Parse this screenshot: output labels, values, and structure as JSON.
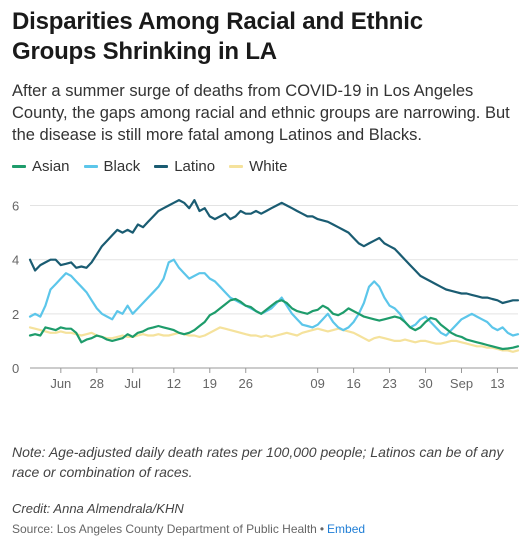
{
  "header": {
    "title": "Disparities Among Racial and Ethnic Groups Shrinking in LA",
    "subtitle": "After a summer surge of deaths from COVID-19 in Los Angeles County, the gaps among racial and ethnic groups are narrowing. But the disease is still more fatal among Latinos and Blacks."
  },
  "footer": {
    "note": "Note: Age-adjusted daily death rates per 100,000 people; Latinos can be of any race or combination of races.",
    "credit": "Credit: Anna Almendrala/KHN",
    "source": "Source: Los Angeles County Department of Public Health",
    "separator": "•",
    "embed": "Embed"
  },
  "chart_data": {
    "type": "line",
    "title": "",
    "xlabel": "",
    "ylabel": "",
    "ylim": [
      0,
      6.5
    ],
    "yticks": [
      0,
      2,
      4,
      6
    ],
    "xlim": [
      0,
      95
    ],
    "xticks": [
      {
        "x": 6,
        "label": "Jun"
      },
      {
        "x": 13,
        "label": "28"
      },
      {
        "x": 20,
        "label": "Jul"
      },
      {
        "x": 28,
        "label": "12"
      },
      {
        "x": 35,
        "label": "19"
      },
      {
        "x": 42,
        "label": "26"
      },
      {
        "x": 56,
        "label": "09"
      },
      {
        "x": 63,
        "label": "16"
      },
      {
        "x": 70,
        "label": "23"
      },
      {
        "x": 77,
        "label": "30"
      },
      {
        "x": 84,
        "label": "Sep"
      },
      {
        "x": 91,
        "label": "13"
      }
    ],
    "legend_position": "top-left",
    "grid": "horizontal",
    "series": [
      {
        "name": "Asian",
        "color": "#1e9c6b",
        "values": [
          1.2,
          1.25,
          1.2,
          1.5,
          1.45,
          1.4,
          1.5,
          1.45,
          1.45,
          1.3,
          0.95,
          1.05,
          1.1,
          1.2,
          1.15,
          1.05,
          1.0,
          1.05,
          1.1,
          1.25,
          1.15,
          1.3,
          1.35,
          1.45,
          1.5,
          1.55,
          1.5,
          1.45,
          1.4,
          1.3,
          1.25,
          1.3,
          1.4,
          1.55,
          1.7,
          1.95,
          2.05,
          2.2,
          2.35,
          2.5,
          2.55,
          2.45,
          2.3,
          2.25,
          2.1,
          2.0,
          2.15,
          2.3,
          2.45,
          2.5,
          2.4,
          2.2,
          2.1,
          2.05,
          2.0,
          2.1,
          2.15,
          2.3,
          2.2,
          2.0,
          1.95,
          2.05,
          2.2,
          2.1,
          2.0,
          1.9,
          1.85,
          1.8,
          1.75,
          1.8,
          1.85,
          1.9,
          1.85,
          1.7,
          1.5,
          1.4,
          1.5,
          1.7,
          1.85,
          1.8,
          1.6,
          1.45,
          1.3,
          1.2,
          1.15,
          1.05,
          1.0,
          0.95,
          0.9,
          0.85,
          0.8,
          0.75,
          0.7,
          0.72,
          0.75,
          0.8
        ]
      },
      {
        "name": "Black",
        "color": "#5cc6ea",
        "values": [
          1.9,
          2.0,
          1.9,
          2.3,
          2.9,
          3.1,
          3.3,
          3.5,
          3.4,
          3.2,
          3.0,
          2.8,
          2.5,
          2.2,
          2.0,
          1.9,
          1.8,
          2.1,
          2.0,
          2.3,
          2.0,
          2.2,
          2.4,
          2.6,
          2.8,
          3.0,
          3.3,
          3.9,
          4.0,
          3.7,
          3.5,
          3.3,
          3.4,
          3.5,
          3.5,
          3.3,
          3.2,
          3.0,
          2.8,
          2.6,
          2.5,
          2.4,
          2.3,
          2.2,
          2.1,
          2.0,
          2.1,
          2.2,
          2.4,
          2.6,
          2.3,
          2.0,
          1.8,
          1.6,
          1.55,
          1.5,
          1.6,
          1.8,
          2.0,
          1.7,
          1.5,
          1.4,
          1.5,
          1.7,
          2.0,
          2.4,
          3.0,
          3.2,
          3.0,
          2.6,
          2.3,
          2.2,
          2.0,
          1.7,
          1.5,
          1.6,
          1.8,
          1.9,
          1.7,
          1.5,
          1.3,
          1.2,
          1.4,
          1.6,
          1.8,
          1.9,
          2.0,
          1.9,
          1.8,
          1.7,
          1.5,
          1.4,
          1.5,
          1.3,
          1.2,
          1.25
        ]
      },
      {
        "name": "Latino",
        "color": "#1a5c72",
        "values": [
          4.0,
          3.6,
          3.8,
          3.9,
          4.0,
          4.0,
          3.8,
          3.85,
          3.9,
          3.7,
          3.75,
          3.7,
          3.9,
          4.2,
          4.5,
          4.7,
          4.9,
          5.1,
          5.0,
          5.1,
          5.0,
          5.3,
          5.2,
          5.4,
          5.6,
          5.8,
          5.9,
          6.0,
          6.1,
          6.2,
          6.1,
          5.9,
          6.2,
          5.8,
          5.9,
          5.6,
          5.5,
          5.6,
          5.7,
          5.5,
          5.6,
          5.8,
          5.7,
          5.7,
          5.8,
          5.7,
          5.8,
          5.9,
          6.0,
          6.1,
          6.0,
          5.9,
          5.8,
          5.7,
          5.6,
          5.6,
          5.5,
          5.45,
          5.4,
          5.3,
          5.2,
          5.1,
          5.0,
          4.8,
          4.6,
          4.5,
          4.6,
          4.7,
          4.8,
          4.6,
          4.5,
          4.4,
          4.2,
          4.0,
          3.8,
          3.6,
          3.4,
          3.3,
          3.2,
          3.1,
          3.0,
          2.9,
          2.85,
          2.8,
          2.75,
          2.75,
          2.7,
          2.65,
          2.6,
          2.6,
          2.55,
          2.5,
          2.4,
          2.45,
          2.5,
          2.5
        ]
      },
      {
        "name": "White",
        "color": "#f5e29c",
        "values": [
          1.5,
          1.45,
          1.4,
          1.35,
          1.3,
          1.3,
          1.35,
          1.3,
          1.3,
          1.25,
          1.2,
          1.25,
          1.3,
          1.2,
          1.15,
          1.1,
          1.1,
          1.15,
          1.2,
          1.15,
          1.15,
          1.2,
          1.25,
          1.2,
          1.2,
          1.25,
          1.2,
          1.2,
          1.25,
          1.3,
          1.25,
          1.2,
          1.2,
          1.15,
          1.2,
          1.3,
          1.4,
          1.5,
          1.45,
          1.4,
          1.35,
          1.3,
          1.25,
          1.2,
          1.2,
          1.15,
          1.2,
          1.15,
          1.2,
          1.25,
          1.3,
          1.25,
          1.2,
          1.3,
          1.35,
          1.4,
          1.45,
          1.4,
          1.35,
          1.4,
          1.45,
          1.4,
          1.35,
          1.3,
          1.2,
          1.1,
          1.0,
          1.1,
          1.15,
          1.1,
          1.05,
          1.0,
          1.0,
          1.05,
          1.0,
          0.95,
          1.0,
          1.0,
          0.95,
          0.9,
          0.9,
          0.95,
          1.0,
          1.0,
          0.95,
          0.9,
          0.85,
          0.8,
          0.8,
          0.75,
          0.75,
          0.7,
          0.65,
          0.65,
          0.6,
          0.65
        ]
      }
    ]
  }
}
